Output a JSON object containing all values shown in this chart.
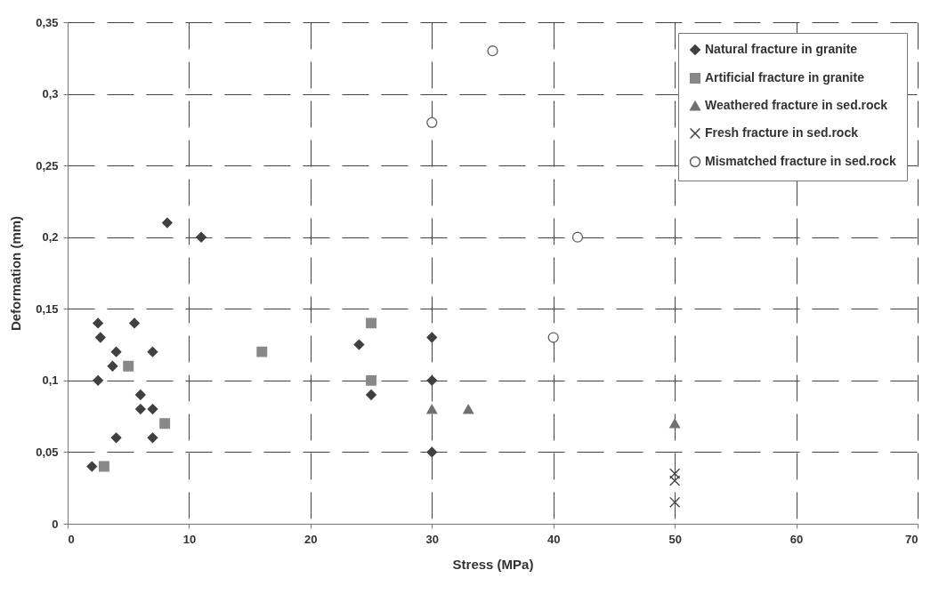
{
  "chart_data": {
    "type": "scatter",
    "xlabel": "Stress (MPa)",
    "ylabel": "Deformation (mm)",
    "xlim": [
      0,
      70
    ],
    "xticks": [
      0,
      10,
      20,
      30,
      40,
      50,
      60,
      70
    ],
    "ylim": [
      0,
      0.35
    ],
    "yticks": [
      0,
      {
        "value": 0.05,
        "label": "0,05"
      },
      {
        "value": 0.1,
        "label": "0,1"
      },
      {
        "value": 0.15,
        "label": "0,15"
      },
      {
        "value": 0.2,
        "label": "0,2"
      },
      {
        "value": 0.25,
        "label": "0,25"
      },
      {
        "value": 0.3,
        "label": "0,3"
      },
      {
        "value": 0.35,
        "label": "0,35"
      }
    ],
    "grid": true,
    "legend": "top right",
    "series": [
      {
        "name": "Natural fracture in granite",
        "color": "#404040",
        "marker": "diamond",
        "x": [
          2,
          2.5,
          2.7,
          2.5,
          3.7,
          4,
          4,
          5.5,
          6,
          6,
          7,
          7,
          7,
          8.2,
          11,
          24,
          25,
          30,
          30,
          30
        ],
        "values": [
          0.04,
          0.14,
          0.13,
          0.1,
          0.11,
          0.12,
          0.06,
          0.14,
          0.09,
          0.08,
          0.12,
          0.08,
          0.06,
          0.21,
          0.2,
          0.125,
          0.09,
          0.13,
          0.1,
          0.05
        ]
      },
      {
        "name": "Artificial fracture in granite",
        "color": "#888888",
        "marker": "square",
        "x": [
          3,
          5,
          8,
          16,
          25,
          25
        ],
        "values": [
          0.04,
          0.11,
          0.07,
          0.12,
          0.14,
          0.1
        ]
      },
      {
        "name": "Weathered fracture in sed.rock",
        "color": "#707070",
        "marker": "triangle",
        "x": [
          30,
          33,
          50
        ],
        "values": [
          0.08,
          0.08,
          0.07
        ]
      },
      {
        "name": "Fresh fracture in sed.rock",
        "color": "#404040",
        "marker": "cross",
        "x": [
          50,
          50,
          50
        ],
        "values": [
          0.035,
          0.03,
          0.015
        ]
      },
      {
        "name": "Mismatched fracture in sed.rock",
        "color": "#606060",
        "marker": "circle",
        "x": [
          30,
          35,
          40,
          42
        ],
        "values": [
          0.28,
          0.33,
          0.13,
          0.2
        ]
      }
    ]
  }
}
